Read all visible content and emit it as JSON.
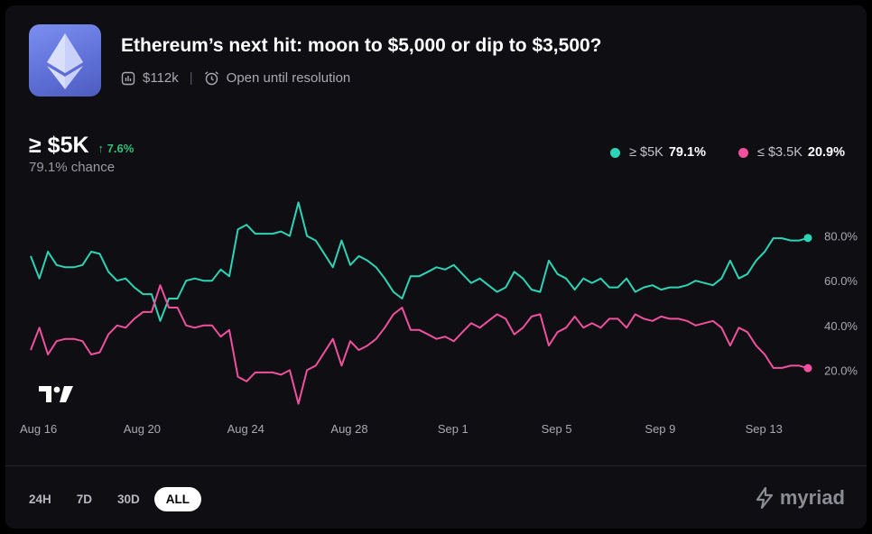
{
  "market": {
    "title": "Ethereum’s next hit: moon to $5,000 or dip to $3,500?",
    "volume": "$112k",
    "status": "Open until resolution"
  },
  "headline": {
    "outcome": "≥ $5K",
    "change": "↑ 7.6%",
    "chance": "79.1% chance"
  },
  "legend": [
    {
      "label": "≥ $5K",
      "value": "79.1%",
      "color": "#2dd4b6"
    },
    {
      "label": "≤ $3.5K",
      "value": "20.9%",
      "color": "#f0509e"
    }
  ],
  "ranges": [
    "24H",
    "7D",
    "30D",
    "ALL"
  ],
  "active_range": "ALL",
  "brand": "myriad",
  "chart_data": {
    "type": "line",
    "ylim": [
      0,
      100
    ],
    "yticks": [
      "80.0%",
      "60.0%",
      "40.0%",
      "20.0%"
    ],
    "ytick_values": [
      80,
      60,
      40,
      20
    ],
    "xticks": [
      "Aug 16",
      "Aug 20",
      "Aug 24",
      "Aug 28",
      "Sep 1",
      "Sep 5",
      "Sep 9",
      "Sep 13"
    ],
    "xtick_days": [
      0,
      4,
      8,
      12,
      16,
      20,
      24,
      28
    ],
    "x_start_day": -0.3,
    "x_end_day": 29.7,
    "series": [
      {
        "name": "≥ $5K",
        "color": "#2dd4b6",
        "values": [
          71,
          61,
          73,
          67,
          66,
          66,
          67,
          73,
          72,
          64,
          60,
          61,
          57,
          54,
          54,
          42,
          52,
          52,
          60,
          61,
          60,
          60,
          65,
          62,
          83,
          85,
          81,
          81,
          81,
          82,
          80,
          95,
          80,
          78,
          72,
          66,
          78,
          67,
          71,
          69,
          66,
          61,
          55,
          52,
          62,
          62,
          64,
          66,
          65,
          67,
          63,
          59,
          61,
          58,
          55,
          57,
          64,
          61,
          56,
          55,
          69,
          63,
          61,
          56,
          61,
          59,
          61,
          57,
          57,
          61,
          55,
          57,
          58,
          56,
          57,
          57,
          58,
          60,
          59,
          58,
          61,
          69,
          61,
          63,
          69,
          73,
          79,
          79,
          78,
          78,
          79.1
        ]
      },
      {
        "name": "≤ $3.5K",
        "color": "#f0509e",
        "values": [
          29,
          39,
          27,
          33,
          34,
          34,
          33,
          27,
          28,
          36,
          40,
          39,
          43,
          46,
          46,
          58,
          48,
          48,
          40,
          39,
          40,
          40,
          35,
          38,
          17,
          15,
          19,
          19,
          19,
          18,
          20,
          5,
          20,
          22,
          28,
          34,
          22,
          33,
          29,
          31,
          34,
          39,
          45,
          48,
          38,
          38,
          36,
          34,
          35,
          33,
          37,
          41,
          39,
          42,
          45,
          43,
          36,
          39,
          44,
          45,
          31,
          37,
          39,
          44,
          39,
          41,
          39,
          43,
          43,
          39,
          45,
          43,
          42,
          44,
          43,
          43,
          42,
          40,
          41,
          42,
          39,
          31,
          39,
          37,
          31,
          27,
          21,
          21,
          22,
          22,
          20.9
        ]
      }
    ]
  }
}
